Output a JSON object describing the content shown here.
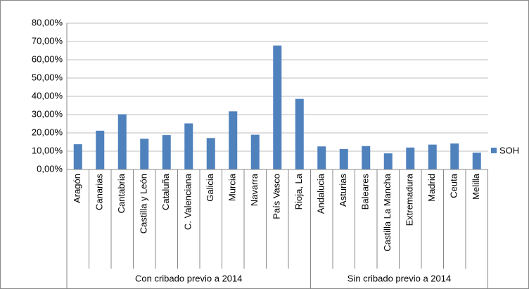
{
  "chart_data": {
    "type": "bar",
    "groups": [
      {
        "name": "Con cribado previo a 2014",
        "categories": [
          "Aragón",
          "Canarias",
          "Cantabria",
          "Castilla y León",
          "Cataluña",
          "C. Valenciana",
          "Galicia",
          "Murcia",
          "Navarra",
          "País Vasco",
          "Rioja, La"
        ]
      },
      {
        "name": "Sin cribado previo a 2014",
        "categories": [
          "Andalucia",
          "Asturias",
          "Baleares",
          "Castilla La Mancha",
          "Extremadura",
          "Madrid",
          "Ceuta",
          "Melilla"
        ]
      }
    ],
    "series": [
      {
        "name": "SOH",
        "color": "#4f81bd",
        "values": [
          13.8,
          21.2,
          30.2,
          16.8,
          18.8,
          25.2,
          17.2,
          31.8,
          19,
          67.8,
          38.6,
          12.6,
          11.2,
          12.8,
          8.8,
          12,
          13.6,
          14.2,
          9.2
        ]
      }
    ],
    "ylim": [
      0,
      80
    ],
    "yticks": [
      {
        "value": 0,
        "label": "0,00%"
      },
      {
        "value": 10,
        "label": "10,00%"
      },
      {
        "value": 20,
        "label": "20,00%"
      },
      {
        "value": 30,
        "label": "30,00%"
      },
      {
        "value": 40,
        "label": "40,00%"
      },
      {
        "value": 50,
        "label": "50,00%"
      },
      {
        "value": 60,
        "label": "60,00%"
      },
      {
        "value": 70,
        "label": "70,00%"
      },
      {
        "value": 80,
        "label": "80,00%"
      }
    ],
    "grid": true,
    "legend": "right"
  }
}
